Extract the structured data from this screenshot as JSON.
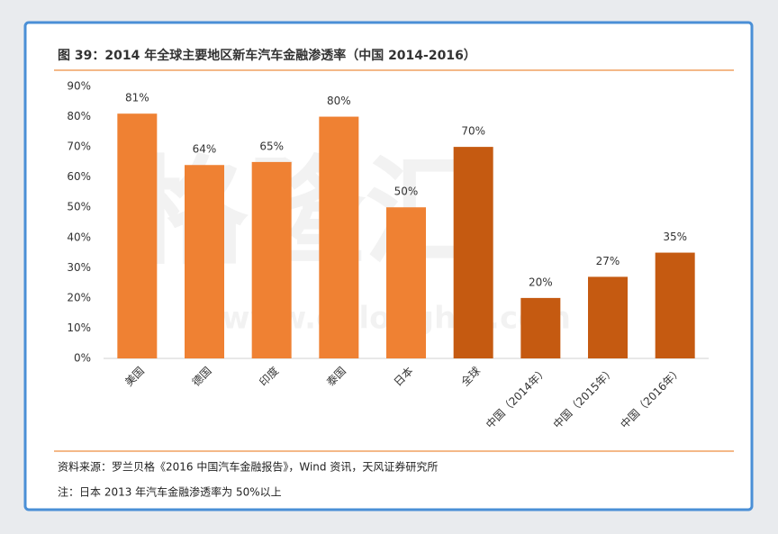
{
  "chart_data": {
    "type": "bar",
    "title": "图 39：2014 年全球主要地区新车汽车金融渗透率（中国 2014-2016）",
    "categories": [
      "美国",
      "德国",
      "印度",
      "泰国",
      "日本",
      "全球",
      "中国（2014年）",
      "中国（2015年）",
      "中国（2016年）"
    ],
    "values": [
      81,
      64,
      65,
      80,
      50,
      70,
      20,
      27,
      35
    ],
    "value_labels": [
      "81%",
      "64%",
      "65%",
      "80%",
      "50%",
      "70%",
      "20%",
      "27%",
      "35%"
    ],
    "colors": [
      "#ef8133",
      "#ef8133",
      "#ef8133",
      "#ef8133",
      "#ef8133",
      "#c55a11",
      "#c55a11",
      "#c55a11",
      "#c55a11"
    ],
    "ylim": [
      0,
      90
    ],
    "yticks": [
      {
        "value": 0,
        "label": "0%"
      },
      {
        "value": 10,
        "label": "10%"
      },
      {
        "value": 20,
        "label": "20%"
      },
      {
        "value": 30,
        "label": "30%"
      },
      {
        "value": 40,
        "label": "40%"
      },
      {
        "value": 50,
        "label": "50%"
      },
      {
        "value": 60,
        "label": "60%"
      },
      {
        "value": 70,
        "label": "70%"
      },
      {
        "value": 80,
        "label": "80%"
      },
      {
        "value": 90,
        "label": "90%"
      }
    ],
    "grid": false,
    "watermark": "格隆汇",
    "watermark_url": "www.gelonghui.com",
    "source": "资料来源：罗兰贝格《2016 中国汽车金融报告》，Wind 资讯，天风证券研究所",
    "note": "注：日本 2013 年汽车金融渗透率为 50%以上"
  }
}
